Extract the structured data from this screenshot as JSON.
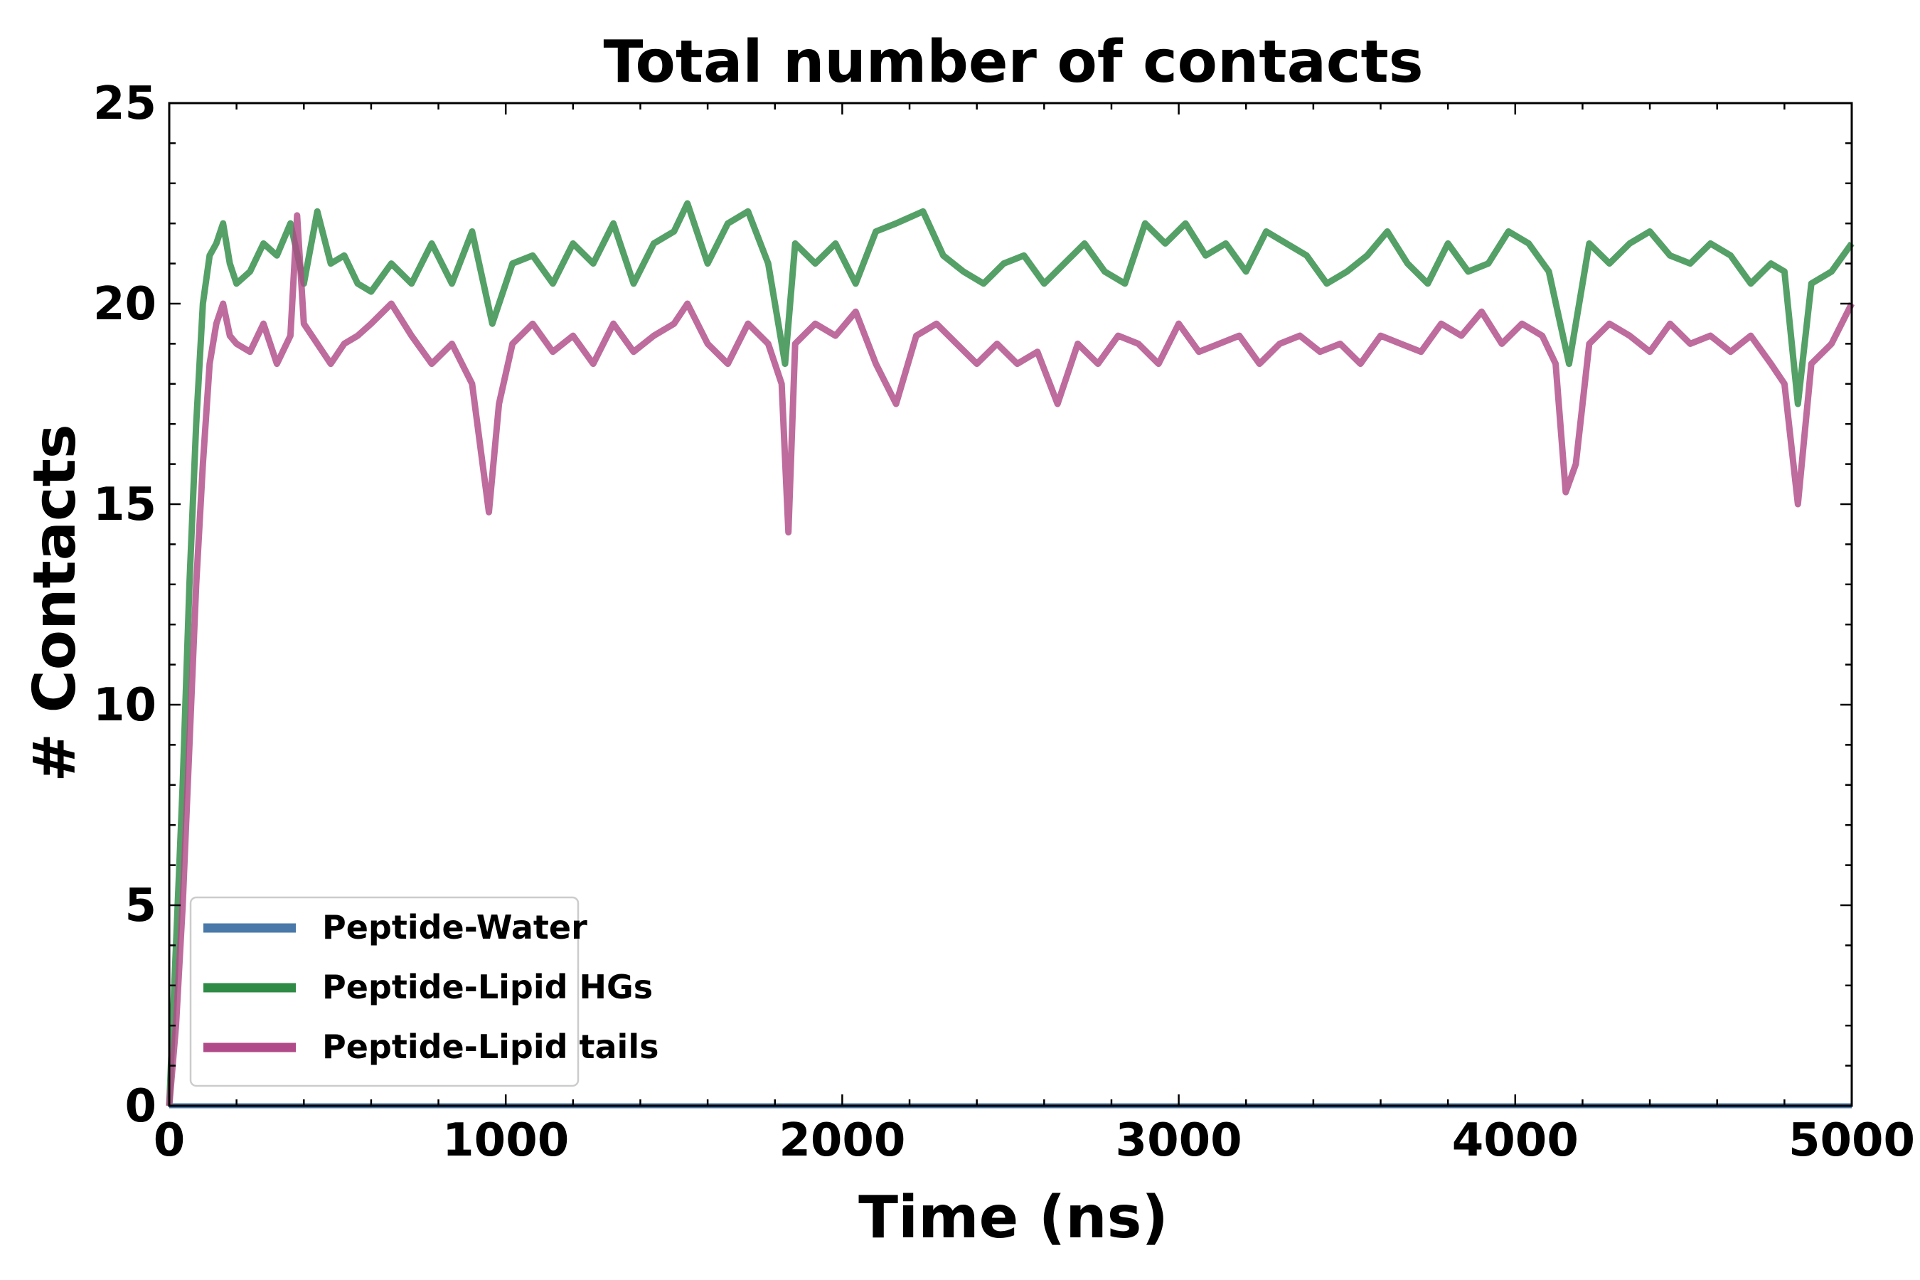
{
  "chart_data": {
    "type": "line",
    "title": "Total number of contacts",
    "xlabel": "Time (ns)",
    "ylabel": "# Contacts",
    "xlim": [
      0,
      5000
    ],
    "ylim": [
      0,
      25
    ],
    "x_ticks": [
      "0",
      "1000",
      "2000",
      "3000",
      "4000",
      "5000"
    ],
    "y_ticks": [
      "0",
      "5",
      "10",
      "15",
      "20",
      "25"
    ],
    "grid": false,
    "legend": "bottom-left",
    "series": [
      {
        "name": "Peptide-Water",
        "color": "#4a78a8",
        "x": [
          0,
          5000
        ],
        "y": [
          0,
          0
        ]
      },
      {
        "name": "Peptide-Lipid HGs",
        "color": "#2e8b45",
        "x": [
          0,
          20,
          40,
          60,
          80,
          100,
          120,
          140,
          160,
          180,
          200,
          240,
          280,
          320,
          360,
          400,
          440,
          480,
          520,
          560,
          600,
          660,
          720,
          780,
          840,
          900,
          960,
          1020,
          1080,
          1140,
          1200,
          1260,
          1320,
          1380,
          1440,
          1500,
          1540,
          1600,
          1660,
          1720,
          1780,
          1830,
          1860,
          1920,
          1980,
          2040,
          2100,
          2160,
          2240,
          2300,
          2360,
          2420,
          2480,
          2540,
          2600,
          2660,
          2720,
          2780,
          2840,
          2900,
          2960,
          3020,
          3080,
          3140,
          3200,
          3260,
          3320,
          3380,
          3440,
          3500,
          3560,
          3620,
          3680,
          3740,
          3800,
          3860,
          3920,
          3980,
          4040,
          4100,
          4160,
          4220,
          4280,
          4340,
          4400,
          4460,
          4520,
          4580,
          4640,
          4700,
          4760,
          4800,
          4840,
          4880,
          4940,
          5000
        ],
        "y": [
          0,
          4,
          8,
          13,
          17,
          20,
          21.2,
          21.5,
          22,
          21,
          20.5,
          20.8,
          21.5,
          21.2,
          22,
          20.5,
          22.3,
          21,
          21.2,
          20.5,
          20.3,
          21,
          20.5,
          21.5,
          20.5,
          21.8,
          19.5,
          21,
          21.2,
          20.5,
          21.5,
          21,
          22,
          20.5,
          21.5,
          21.8,
          22.5,
          21,
          22,
          22.3,
          21,
          18.5,
          21.5,
          21,
          21.5,
          20.5,
          21.8,
          22,
          22.3,
          21.2,
          20.8,
          20.5,
          21,
          21.2,
          20.5,
          21,
          21.5,
          20.8,
          20.5,
          22,
          21.5,
          22,
          21.2,
          21.5,
          20.8,
          21.8,
          21.5,
          21.2,
          20.5,
          20.8,
          21.2,
          21.8,
          21,
          20.5,
          21.5,
          20.8,
          21,
          21.8,
          21.5,
          20.8,
          18.5,
          21.5,
          21,
          21.5,
          21.8,
          21.2,
          21,
          21.5,
          21.2,
          20.5,
          21,
          20.8,
          17.5,
          20.5,
          20.8,
          21.5
        ]
      },
      {
        "name": "Peptide-Lipid tails",
        "color": "#b04a88",
        "x": [
          0,
          20,
          40,
          60,
          80,
          100,
          120,
          140,
          160,
          180,
          200,
          240,
          280,
          320,
          360,
          380,
          400,
          440,
          480,
          520,
          560,
          600,
          660,
          720,
          780,
          840,
          900,
          950,
          980,
          1020,
          1080,
          1140,
          1200,
          1260,
          1320,
          1380,
          1440,
          1500,
          1540,
          1600,
          1660,
          1720,
          1780,
          1820,
          1840,
          1860,
          1920,
          1980,
          2040,
          2100,
          2160,
          2220,
          2280,
          2340,
          2400,
          2460,
          2520,
          2580,
          2640,
          2700,
          2760,
          2820,
          2880,
          2940,
          3000,
          3060,
          3120,
          3180,
          3240,
          3300,
          3360,
          3420,
          3480,
          3540,
          3600,
          3660,
          3720,
          3780,
          3840,
          3900,
          3960,
          4020,
          4080,
          4120,
          4150,
          4180,
          4220,
          4280,
          4340,
          4400,
          4460,
          4520,
          4580,
          4640,
          4700,
          4760,
          4800,
          4840,
          4880,
          4940,
          5000
        ],
        "y": [
          0,
          2,
          5,
          9,
          13,
          16,
          18.5,
          19.5,
          20,
          19.2,
          19,
          18.8,
          19.5,
          18.5,
          19.2,
          22.2,
          19.5,
          19,
          18.5,
          19,
          19.2,
          19.5,
          20,
          19.2,
          18.5,
          19,
          18,
          14.8,
          17.5,
          19,
          19.5,
          18.8,
          19.2,
          18.5,
          19.5,
          18.8,
          19.2,
          19.5,
          20,
          19,
          18.5,
          19.5,
          19,
          18,
          14.3,
          19,
          19.5,
          19.2,
          19.8,
          18.5,
          17.5,
          19.2,
          19.5,
          19,
          18.5,
          19,
          18.5,
          18.8,
          17.5,
          19,
          18.5,
          19.2,
          19,
          18.5,
          19.5,
          18.8,
          19,
          19.2,
          18.5,
          19,
          19.2,
          18.8,
          19,
          18.5,
          19.2,
          19,
          18.8,
          19.5,
          19.2,
          19.8,
          19,
          19.5,
          19.2,
          18.5,
          15.3,
          16,
          19,
          19.5,
          19.2,
          18.8,
          19.5,
          19,
          19.2,
          18.8,
          19.2,
          18.5,
          18,
          15,
          18.5,
          19,
          20
        ]
      }
    ]
  }
}
